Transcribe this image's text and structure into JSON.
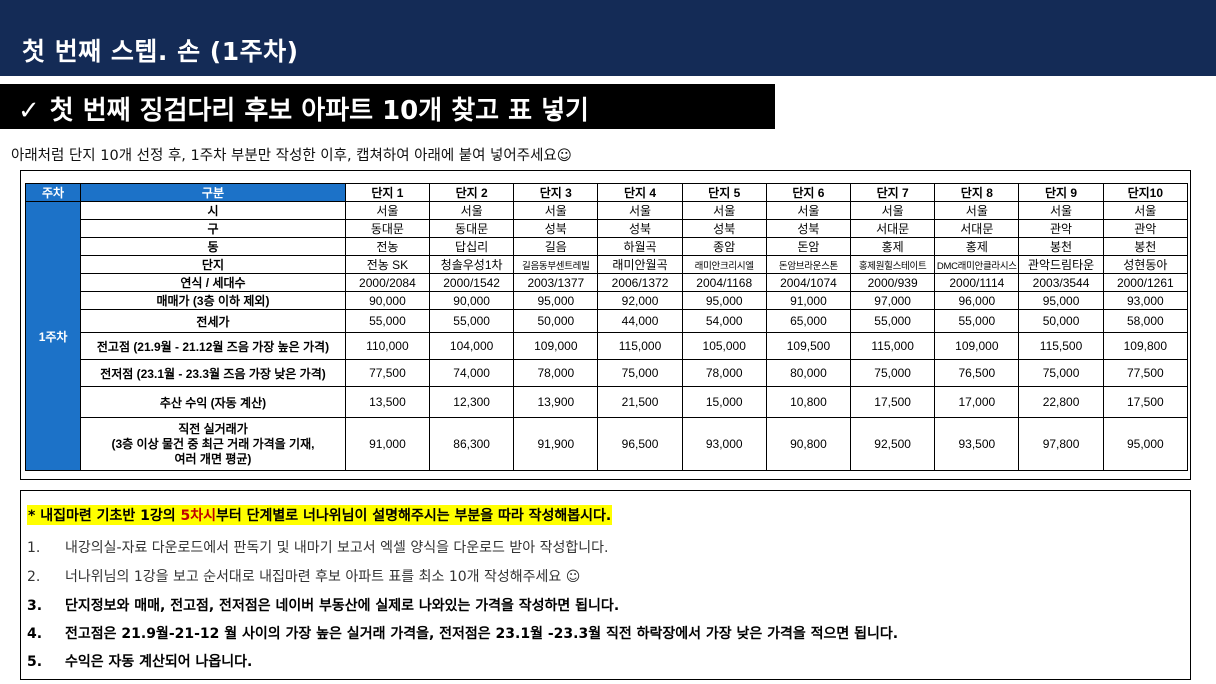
{
  "header": {
    "title": "첫 번째 스텝. 손 (1주차)",
    "background": "#142b56"
  },
  "banner": {
    "check_icon": "✓",
    "title": "첫 번째 징검다리 후보 아파트 10개 찾고 표 넣기"
  },
  "subtitle": "아래처럼 단지 10개 선정 후, 1주차 부분만 작성한 이후, 캡쳐하여 아래에 붙여 넣어주세요☺",
  "table": {
    "head_week": "주차",
    "head_category": "구분",
    "week_label": "1주차",
    "columns": [
      "단지 1",
      "단지 2",
      "단지 3",
      "단지 4",
      "단지 5",
      "단지 6",
      "단지 7",
      "단지 8",
      "단지 9",
      "단지10"
    ],
    "rows": [
      {
        "label": "시",
        "values": [
          "서울",
          "서울",
          "서울",
          "서울",
          "서울",
          "서울",
          "서울",
          "서울",
          "서울",
          "서울"
        ]
      },
      {
        "label": "구",
        "values": [
          "동대문",
          "동대문",
          "성북",
          "성북",
          "성북",
          "성북",
          "서대문",
          "서대문",
          "관악",
          "관악"
        ]
      },
      {
        "label": "동",
        "values": [
          "전농",
          "답십리",
          "길음",
          "하월곡",
          "종암",
          "돈암",
          "홍제",
          "홍제",
          "봉천",
          "봉천"
        ]
      },
      {
        "label": "단지",
        "values": [
          "전농 SK",
          "청솔우성1차",
          "길음동부센트레빌",
          "래미안월곡",
          "래미안크리시엘",
          "돈암브라운스톤",
          "홍제원힐스테이트",
          "DMC래미안클라시스",
          "관악드림타운",
          "성현동아"
        ]
      },
      {
        "label": "연식 / 세대수",
        "values": [
          "2000/2084",
          "2000/1542",
          "2003/1377",
          "2006/1372",
          "2004/1168",
          "2004/1074",
          "2000/939",
          "2000/1114",
          "2003/3544",
          "2000/1261"
        ]
      },
      {
        "label": "매매가 (3층 이하 제외)",
        "values": [
          "90,000",
          "90,000",
          "95,000",
          "92,000",
          "95,000",
          "91,000",
          "97,000",
          "96,000",
          "95,000",
          "93,000"
        ]
      },
      {
        "label": "전세가",
        "values": [
          "55,000",
          "55,000",
          "50,000",
          "44,000",
          "54,000",
          "65,000",
          "55,000",
          "55,000",
          "50,000",
          "58,000"
        ]
      },
      {
        "label": "전고점 (21.9월 - 21.12월 즈음 가장 높은 가격)",
        "values": [
          "110,000",
          "104,000",
          "109,000",
          "115,000",
          "105,000",
          "109,500",
          "115,000",
          "109,000",
          "115,500",
          "109,800"
        ]
      },
      {
        "label": "전저점 (23.1월 - 23.3월 즈음 가장 낮은 가격)",
        "values": [
          "77,500",
          "74,000",
          "78,000",
          "75,000",
          "78,000",
          "80,000",
          "75,000",
          "76,500",
          "75,000",
          "77,500"
        ]
      },
      {
        "label": "추산 수익 (자동 계산)",
        "values": [
          "13,500",
          "12,300",
          "13,900",
          "21,500",
          "15,000",
          "10,800",
          "17,500",
          "17,000",
          "22,800",
          "17,500"
        ]
      },
      {
        "label": "직전 실거래가\n(3층 이상 물건 중 최근 거래 가격을 기재,\n여러 개면 평균)",
        "values": [
          "91,000",
          "86,300",
          "91,900",
          "96,500",
          "93,000",
          "90,800",
          "92,500",
          "93,500",
          "97,800",
          "95,000"
        ]
      }
    ]
  },
  "notes": {
    "highlight_prefix": "* 내집마련 기초반 1강의 ",
    "highlight_red": "5차시",
    "highlight_suffix": "부터 단계별로 너나위님이 설명해주시는 부분을 따라 작성해봅시다.",
    "items": [
      {
        "num": "1.",
        "text": "내강의실-자료 다운로드에서 판독기 및 내마기 보고서 엑셀 양식을 다운로드 받아 작성합니다."
      },
      {
        "num": "2.",
        "text": "너나위님의 1강을 보고 순서대로 내집마련 후보 아파트 표를 최소 10개  작성해주세요 ☺"
      },
      {
        "num": "3.",
        "text": "단지정보와 매매,  전고점, 전저점은 네이버 부동산에 실제로 나와있는 가격을 작성하면 됩니다."
      },
      {
        "num": "4.",
        "text": "전고점은 21.9월-21-12  월 사이의 가장 높은 실거래 가격을, 전저점은 23.1월 -23.3월 직전 하락장에서 가장 낮은 가격을 적으면 됩니다."
      },
      {
        "num": "5.",
        "text": "수익은 자동 계산되어 나옵니다."
      }
    ]
  }
}
